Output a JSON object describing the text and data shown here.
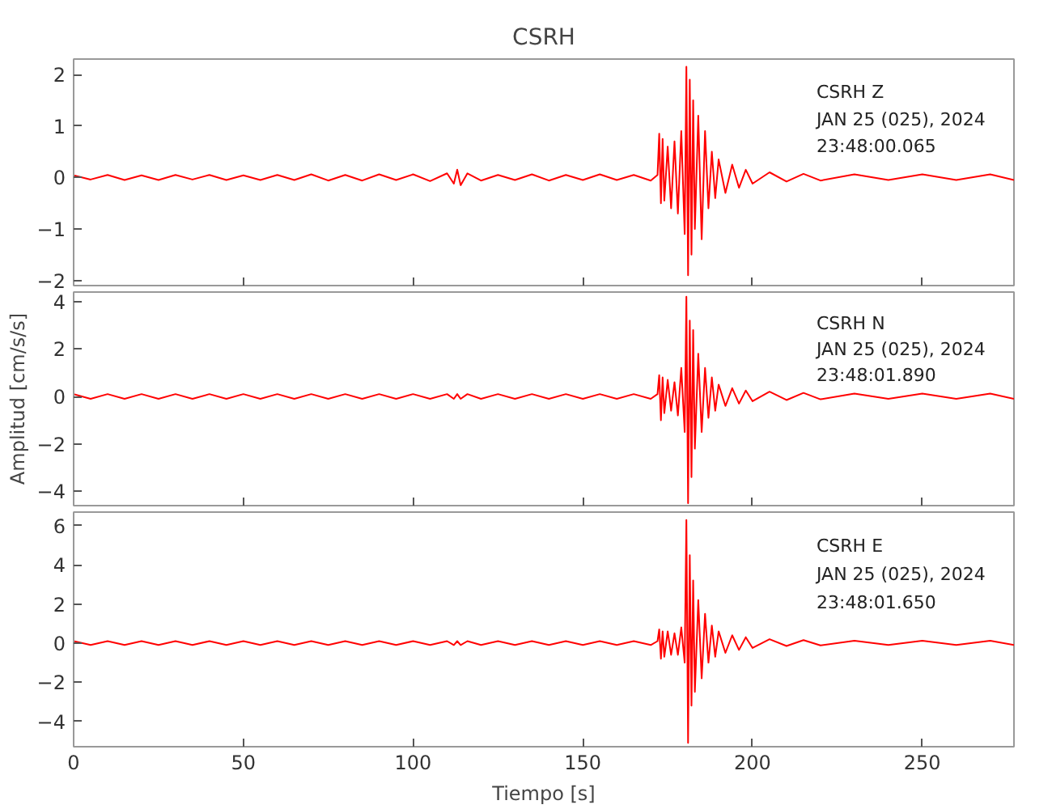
{
  "chart_data": [
    {
      "type": "line",
      "title": "CSRH",
      "x": [
        0,
        5,
        10,
        15,
        20,
        25,
        30,
        35,
        40,
        45,
        50,
        55,
        60,
        65,
        70,
        75,
        80,
        85,
        90,
        95,
        100,
        105,
        110,
        112,
        113,
        114,
        116,
        120,
        125,
        130,
        135,
        140,
        145,
        150,
        155,
        160,
        165,
        170,
        172,
        172.5,
        173,
        173.5,
        174,
        175,
        176,
        177,
        178,
        179,
        180,
        180.5,
        181,
        181.5,
        182,
        182.5,
        183,
        184,
        185,
        186,
        187,
        188,
        189,
        190,
        192,
        194,
        196,
        198,
        200,
        205,
        210,
        215,
        220,
        230,
        240,
        250,
        260,
        270,
        277
      ],
      "series": [
        {
          "color": "#ff0000",
          "values": [
            0.04,
            -0.04,
            0.05,
            -0.05,
            0.04,
            -0.05,
            0.05,
            -0.04,
            0.05,
            -0.05,
            0.04,
            -0.05,
            0.05,
            -0.05,
            0.06,
            -0.06,
            0.05,
            -0.06,
            0.06,
            -0.05,
            0.06,
            -0.07,
            0.08,
            -0.12,
            0.15,
            -0.15,
            0.08,
            -0.06,
            0.05,
            -0.05,
            0.06,
            -0.06,
            0.05,
            -0.05,
            0.06,
            -0.05,
            0.05,
            -0.06,
            0.05,
            0.85,
            -0.5,
            0.75,
            -0.45,
            0.6,
            -0.6,
            0.7,
            -0.7,
            0.9,
            -1.1,
            2.15,
            -1.9,
            1.9,
            -1.5,
            1.5,
            -1.0,
            1.2,
            -1.2,
            0.9,
            -0.6,
            0.5,
            -0.4,
            0.35,
            -0.3,
            0.25,
            -0.2,
            0.15,
            -0.12,
            0.1,
            -0.08,
            0.07,
            -0.06,
            0.06,
            -0.05,
            0.06,
            -0.05,
            0.06,
            -0.05
          ]
        }
      ],
      "xlim": [
        0,
        277
      ],
      "xticks": [
        0,
        50,
        100,
        150,
        200,
        250
      ],
      "ylim": [
        -2.1,
        2.3
      ],
      "yticks": [
        -2,
        -1,
        0,
        1,
        2
      ],
      "tick_labels": "y",
      "annotations": [
        "CSRH   Z",
        "JAN 25 (025), 2024",
        "23:48:00.065"
      ]
    },
    {
      "type": "line",
      "ylabel": "Amplitud [cm/s/s]",
      "x": [
        0,
        5,
        10,
        15,
        20,
        25,
        30,
        35,
        40,
        45,
        50,
        55,
        60,
        65,
        70,
        75,
        80,
        85,
        90,
        95,
        100,
        105,
        110,
        112,
        113,
        114,
        116,
        120,
        125,
        130,
        135,
        140,
        145,
        150,
        155,
        160,
        165,
        170,
        172,
        172.5,
        173,
        173.5,
        174,
        175,
        176,
        177,
        178,
        179,
        180,
        180.5,
        181,
        181.5,
        182,
        182.5,
        183,
        184,
        185,
        186,
        187,
        188,
        189,
        190,
        192,
        194,
        196,
        198,
        200,
        205,
        210,
        215,
        220,
        230,
        240,
        250,
        260,
        270,
        277
      ],
      "series": [
        {
          "color": "#ff0000",
          "values": [
            0.1,
            -0.1,
            0.1,
            -0.1,
            0.1,
            -0.1,
            0.1,
            -0.1,
            0.1,
            -0.1,
            0.1,
            -0.1,
            0.1,
            -0.1,
            0.1,
            -0.1,
            0.1,
            -0.1,
            0.1,
            -0.1,
            0.1,
            -0.1,
            0.1,
            -0.1,
            0.1,
            -0.1,
            0.1,
            -0.1,
            0.1,
            -0.1,
            0.1,
            -0.1,
            0.1,
            -0.1,
            0.1,
            -0.1,
            0.1,
            -0.1,
            0.1,
            0.9,
            -1.0,
            0.8,
            -0.7,
            0.7,
            -0.6,
            0.6,
            -0.8,
            1.2,
            -1.5,
            4.2,
            -4.5,
            3.2,
            -3.4,
            2.8,
            -2.2,
            1.8,
            -1.5,
            1.2,
            -0.9,
            0.8,
            -0.6,
            0.5,
            -0.4,
            0.35,
            -0.3,
            0.25,
            -0.2,
            0.2,
            -0.15,
            0.15,
            -0.12,
            0.12,
            -0.1,
            0.12,
            -0.1,
            0.12,
            -0.1
          ]
        }
      ],
      "xlim": [
        0,
        277
      ],
      "xticks": [
        0,
        50,
        100,
        150,
        200,
        250
      ],
      "ylim": [
        -4.6,
        4.4
      ],
      "yticks": [
        -4,
        -2,
        0,
        2,
        4
      ],
      "tick_labels": "y",
      "annotations": [
        "CSRH   N",
        "JAN 25 (025), 2024",
        "23:48:01.890"
      ]
    },
    {
      "type": "line",
      "xlabel": "Tiempo [s]",
      "x": [
        0,
        5,
        10,
        15,
        20,
        25,
        30,
        35,
        40,
        45,
        50,
        55,
        60,
        65,
        70,
        75,
        80,
        85,
        90,
        95,
        100,
        105,
        110,
        112,
        113,
        114,
        116,
        120,
        125,
        130,
        135,
        140,
        145,
        150,
        155,
        160,
        165,
        170,
        172,
        172.5,
        173,
        173.5,
        174,
        175,
        176,
        177,
        178,
        179,
        180,
        180.5,
        181,
        181.5,
        182,
        182.5,
        183,
        184,
        185,
        186,
        187,
        188,
        189,
        190,
        192,
        194,
        196,
        198,
        200,
        205,
        210,
        215,
        220,
        230,
        240,
        250,
        260,
        270,
        277
      ],
      "series": [
        {
          "color": "#ff0000",
          "values": [
            0.1,
            -0.1,
            0.1,
            -0.1,
            0.1,
            -0.1,
            0.1,
            -0.1,
            0.1,
            -0.1,
            0.1,
            -0.1,
            0.1,
            -0.1,
            0.1,
            -0.1,
            0.1,
            -0.1,
            0.1,
            -0.1,
            0.1,
            -0.1,
            0.1,
            -0.1,
            0.1,
            -0.1,
            0.1,
            -0.1,
            0.1,
            -0.1,
            0.1,
            -0.1,
            0.1,
            -0.1,
            0.1,
            -0.1,
            0.1,
            -0.1,
            0.1,
            0.7,
            -0.8,
            0.6,
            -0.7,
            0.6,
            -0.6,
            0.5,
            -0.6,
            0.8,
            -1.0,
            6.3,
            -5.1,
            4.5,
            -3.2,
            3.2,
            -2.5,
            2.2,
            -1.8,
            1.5,
            -1.0,
            0.9,
            -0.7,
            0.6,
            -0.5,
            0.4,
            -0.35,
            0.3,
            -0.25,
            0.2,
            -0.15,
            0.15,
            -0.12,
            0.12,
            -0.1,
            0.12,
            -0.1,
            0.12,
            -0.1
          ]
        }
      ],
      "xlim": [
        0,
        277
      ],
      "xticks": [
        0,
        50,
        100,
        150,
        200,
        250
      ],
      "ylim": [
        -5.3,
        6.7
      ],
      "yticks": [
        -4,
        -2,
        0,
        2,
        4,
        6
      ],
      "annotations": [
        "CSRH   E",
        "JAN 25 (025), 2024",
        "23:48:01.650"
      ]
    }
  ]
}
